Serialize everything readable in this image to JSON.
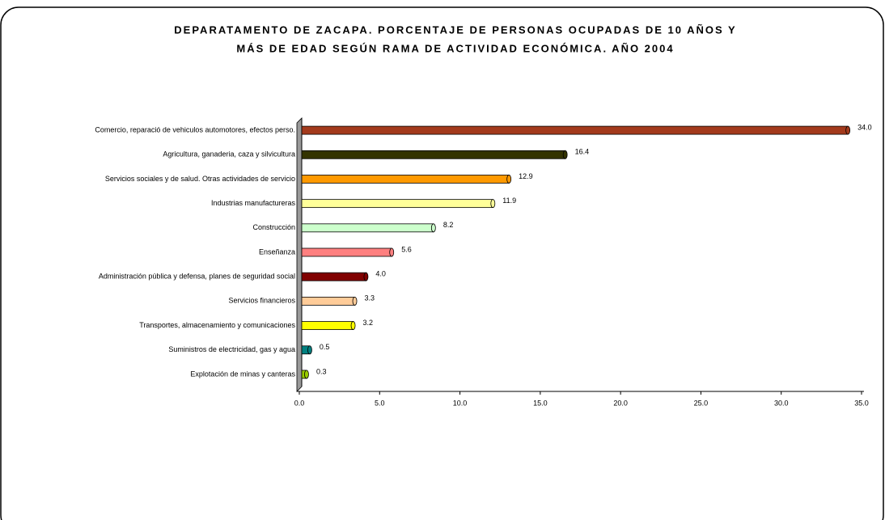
{
  "chart_data": {
    "type": "hbar",
    "title": [
      "DEPARATAMENTO DE ZACAPA. PORCENTAJE DE PERSONAS OCUPADAS DE 10 AÑOS Y",
      "MÁS DE EDAD SEGÚN RAMA DE ACTIVIDAD ECONÓMICA. AÑO 2004"
    ],
    "categories": [
      "Comercio, reparació de vehiculos automotores, efectos perso.",
      "Agricultura, ganaderia, caza y silvicultura",
      "Servicios sociales y de salud. Otras actividades de servicio",
      "Industrias manufactureras",
      "Construcción",
      "Enseñanza",
      "Administración pública y defensa, planes de seguridad social",
      "Servicios financieros",
      "Transportes, almacenamiento y comunicaciones",
      "Suministros de electricidad, gas y agua",
      "Explotación de minas y canteras"
    ],
    "values": [
      34.0,
      16.4,
      12.9,
      11.9,
      8.2,
      5.6,
      4.0,
      3.3,
      3.2,
      0.5,
      0.3
    ],
    "value_labels": [
      "34.0",
      "16.4",
      "12.9",
      "11.9",
      "8.2",
      "5.6",
      "4.0",
      "3.3",
      "3.2",
      "0.5",
      "0.3"
    ],
    "colors": [
      "#a33a1c",
      "#333300",
      "#ff9900",
      "#ffff99",
      "#ccffcc",
      "#ff8080",
      "#800000",
      "#ffcc99",
      "#ffff00",
      "#008080",
      "#99cc00"
    ],
    "xlim": [
      0,
      35
    ],
    "xticks": [
      {
        "value": 0,
        "label": "0.0"
      },
      {
        "value": 5,
        "label": "5.0"
      },
      {
        "value": 10,
        "label": "10.0"
      },
      {
        "value": 15,
        "label": "15.0"
      },
      {
        "value": 20,
        "label": "20.0"
      },
      {
        "value": 25,
        "label": "25.0"
      },
      {
        "value": 30,
        "label": "30.0"
      },
      {
        "value": 35,
        "label": "35.0"
      }
    ]
  }
}
